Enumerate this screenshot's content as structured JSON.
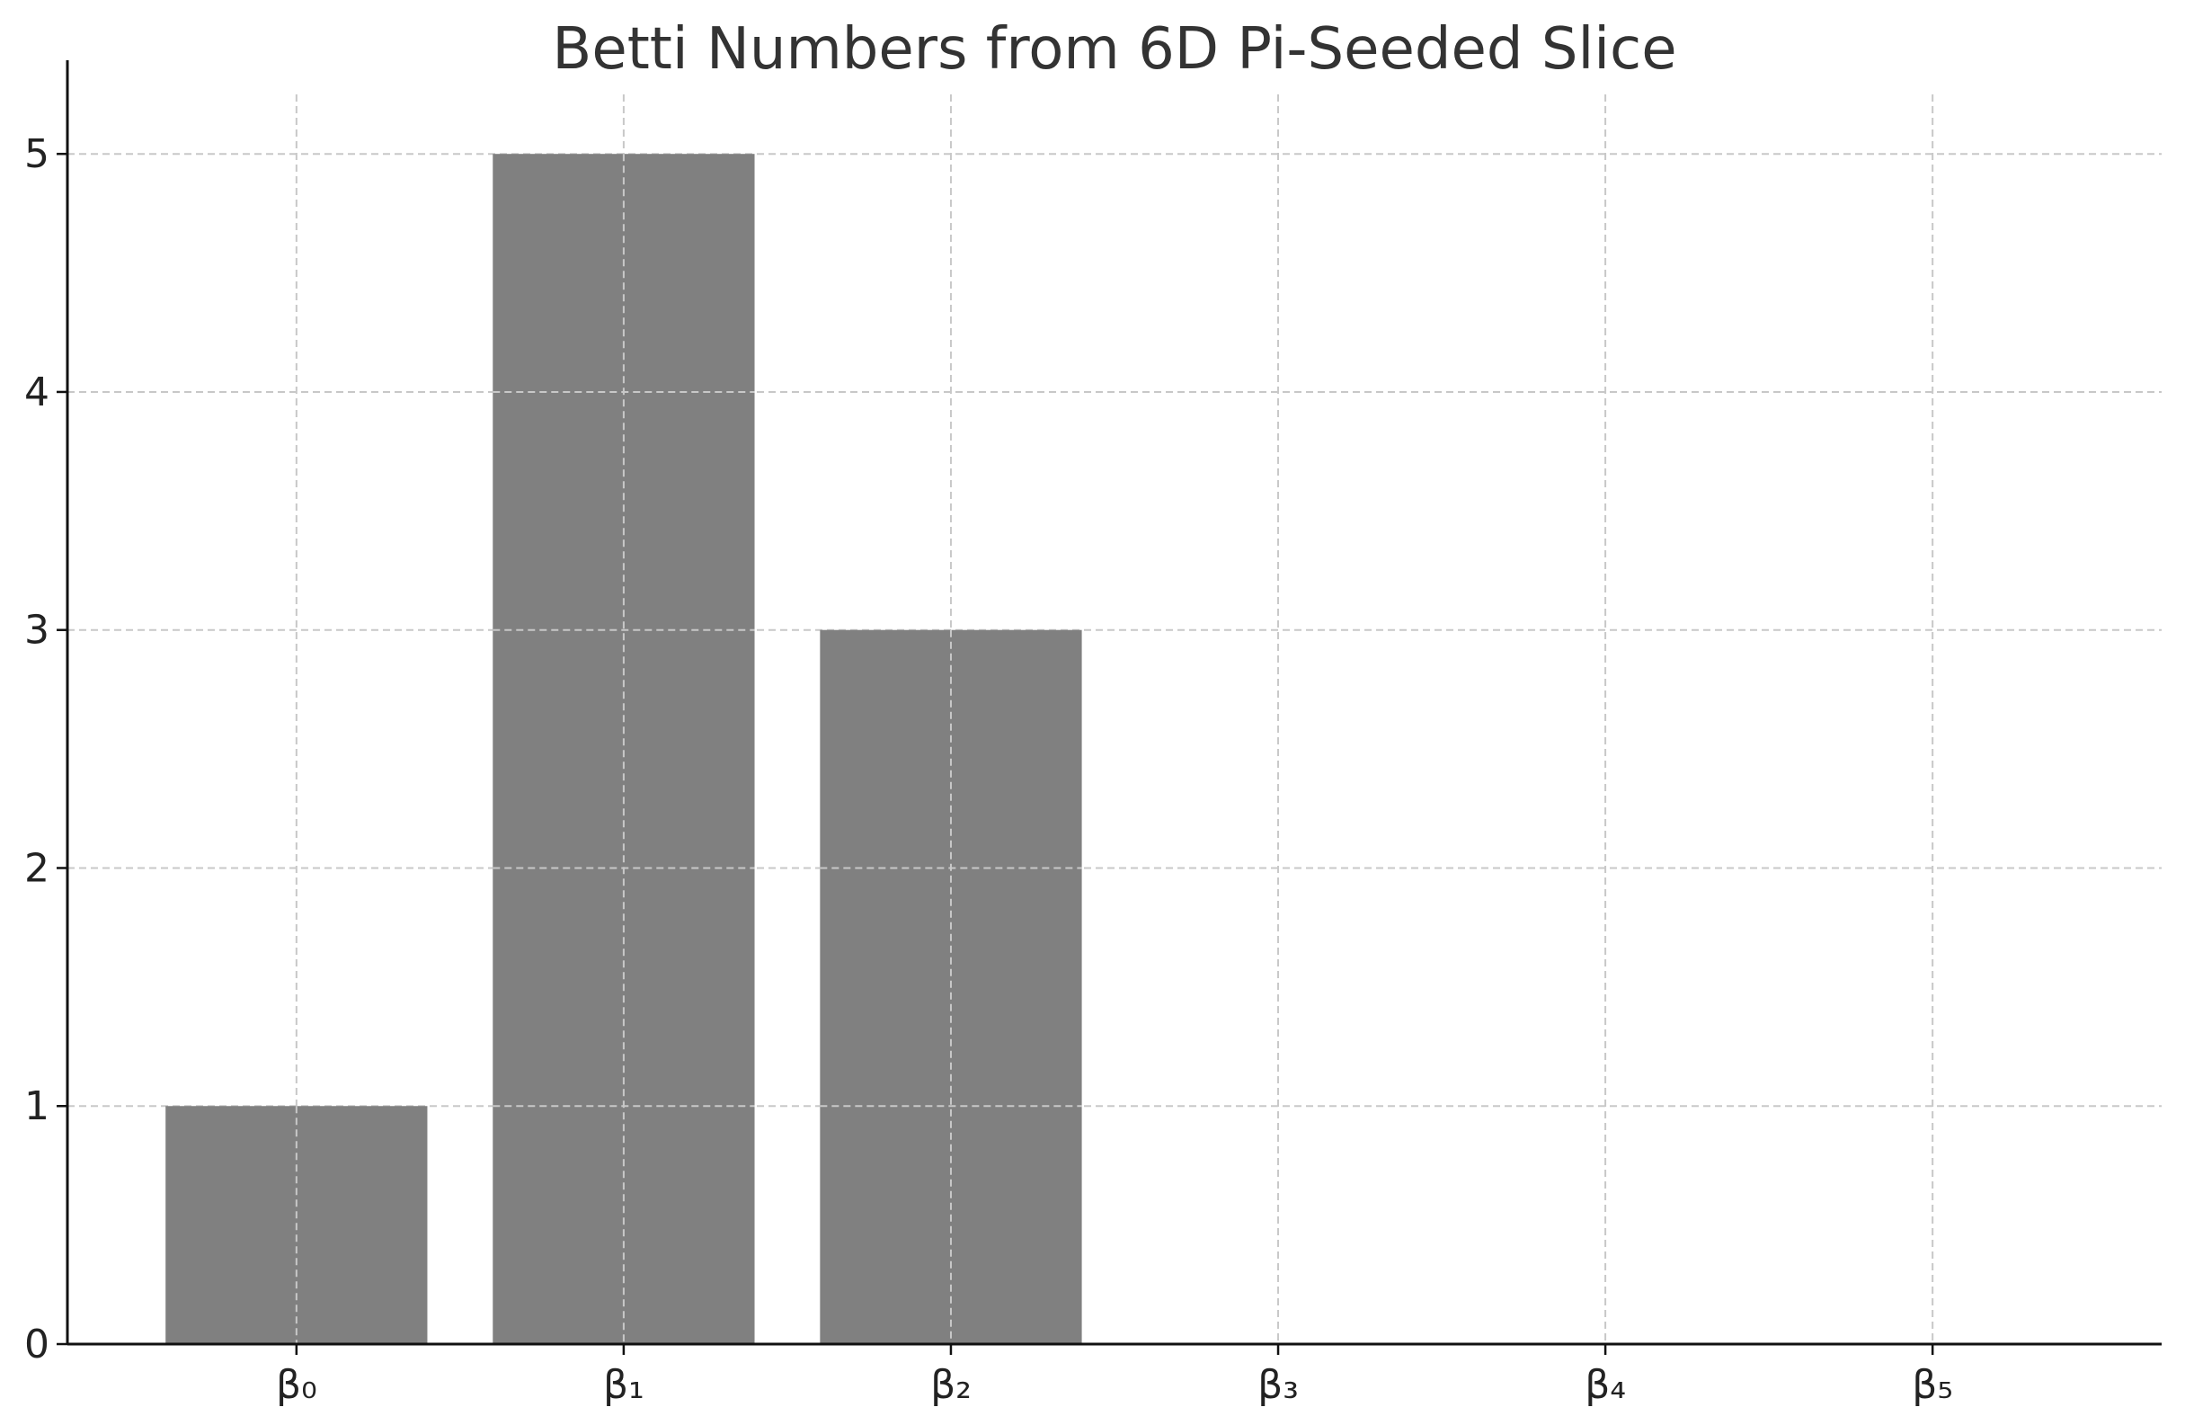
{
  "chart_data": {
    "type": "bar",
    "title": "Betti Numbers from 6D Pi-Seeded Slice",
    "xlabel": "",
    "ylabel": "",
    "categories": [
      "β₀",
      "β₁",
      "β₂",
      "β₃",
      "β₄",
      "β₅"
    ],
    "values": [
      1,
      5,
      3,
      0,
      0,
      0
    ],
    "ylim": [
      0,
      5.25
    ],
    "yticks": [
      0,
      1,
      2,
      3,
      4,
      5
    ],
    "grid": true,
    "bar_color": "#808080",
    "grid_color": "#c8c8c8",
    "axis_color": "#111111"
  }
}
